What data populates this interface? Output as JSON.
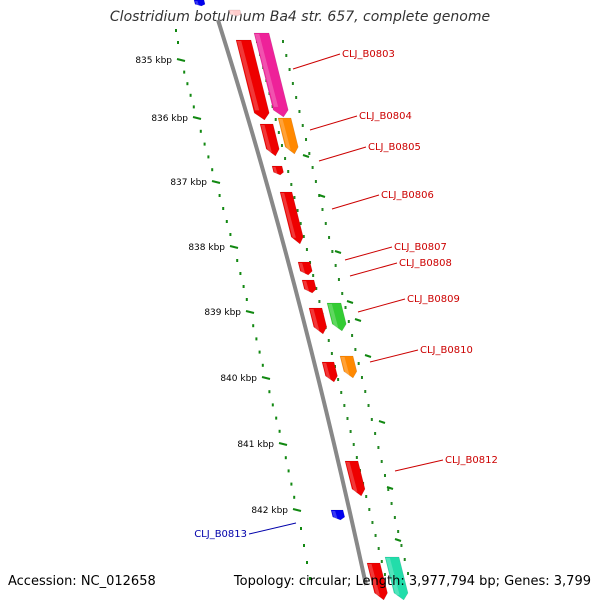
{
  "title": "Clostridium botulinum Ba4 str. 657, complete genome",
  "footer": {
    "accession": "Accession: NC_012658",
    "summary": "Topology: circular; Length: 3,977,794 bp; Genes: 3,799"
  },
  "colors": {
    "label_red": "#cc0000",
    "label_blue": "#0000aa",
    "scale_green": "#118811",
    "backbone": "#888888",
    "red": "#ee0000",
    "magenta": "#ee2299",
    "orange": "#ff8800",
    "green": "#33cc33",
    "teal": "#22ddaa",
    "blue": "#0000ee",
    "pink": "#ffcccc"
  },
  "scale_labels": [
    {
      "text": "835 kbp",
      "kbp": 835
    },
    {
      "text": "836 kbp",
      "kbp": 836
    },
    {
      "text": "837 kbp",
      "kbp": 837
    },
    {
      "text": "838 kbp",
      "kbp": 838
    },
    {
      "text": "839 kbp",
      "kbp": 839
    },
    {
      "text": "840 kbp",
      "kbp": 840
    },
    {
      "text": "841 kbp",
      "kbp": 841
    },
    {
      "text": "842 kbp",
      "kbp": 842
    }
  ],
  "gene_labels": [
    {
      "text": "CLJ_B0803",
      "color": "red"
    },
    {
      "text": "CLJ_B0804",
      "color": "red"
    },
    {
      "text": "CLJ_B0805",
      "color": "red"
    },
    {
      "text": "CLJ_B0806",
      "color": "red"
    },
    {
      "text": "CLJ_B0807",
      "color": "red"
    },
    {
      "text": "CLJ_B0808",
      "color": "red"
    },
    {
      "text": "CLJ_B0809",
      "color": "red"
    },
    {
      "text": "CLJ_B0810",
      "color": "red"
    },
    {
      "text": "CLJ_B0812",
      "color": "red"
    },
    {
      "text": "CLJ_B0813",
      "color": "blue"
    }
  ],
  "features": [
    {
      "name": "inner-red-1",
      "color": "red"
    },
    {
      "name": "outer-magenta-1",
      "color": "magenta"
    },
    {
      "name": "inner-red-2",
      "color": "red"
    },
    {
      "name": "outer-orange-1",
      "color": "orange"
    },
    {
      "name": "inner-red-3",
      "color": "red"
    },
    {
      "name": "inner-red-4",
      "color": "red"
    },
    {
      "name": "inner-red-5",
      "color": "red"
    },
    {
      "name": "inner-red-6",
      "color": "red"
    },
    {
      "name": "inner-red-7",
      "color": "red"
    },
    {
      "name": "outer-green-1",
      "color": "green"
    },
    {
      "name": "inner-red-8",
      "color": "red"
    },
    {
      "name": "outer-orange-2",
      "color": "orange"
    },
    {
      "name": "outer-red-1",
      "color": "red"
    },
    {
      "name": "left-blue-1",
      "color": "blue"
    },
    {
      "name": "top-blue-1",
      "color": "blue"
    },
    {
      "name": "top-pink-1",
      "color": "pink"
    },
    {
      "name": "bottom-red-1",
      "color": "red"
    },
    {
      "name": "bottom-teal-1",
      "color": "teal"
    }
  ]
}
